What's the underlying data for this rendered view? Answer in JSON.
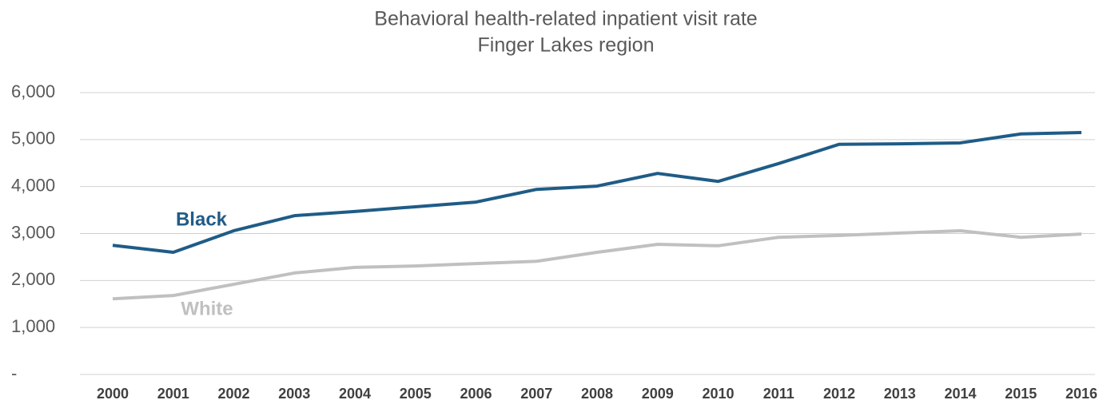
{
  "chart_data": {
    "type": "line",
    "title": "Behavioral health-related inpatient visit rate",
    "subtitle": "Finger Lakes region",
    "categories": [
      "2000",
      "2001",
      "2002",
      "2003",
      "2004",
      "2005",
      "2006",
      "2007",
      "2008",
      "2009",
      "2010",
      "2011",
      "2012",
      "2013",
      "2014",
      "2015",
      "2016"
    ],
    "series": [
      {
        "name": "Black",
        "color": "#1f5c87",
        "values": [
          2750,
          2600,
          3060,
          3380,
          3470,
          3570,
          3670,
          3940,
          4010,
          4280,
          4110,
          4490,
          4900,
          4910,
          4930,
          5120,
          5150
        ]
      },
      {
        "name": "White",
        "color": "#c0c0c0",
        "values": [
          1610,
          1680,
          1920,
          2160,
          2280,
          2310,
          2360,
          2410,
          2600,
          2770,
          2740,
          2920,
          2960,
          3010,
          3060,
          2920,
          2990
        ]
      }
    ],
    "ylim": [
      0,
      6000
    ],
    "yticks": [
      {
        "value": 0,
        "label": "-"
      },
      {
        "value": 1000,
        "label": "1,000"
      },
      {
        "value": 2000,
        "label": "2,000"
      },
      {
        "value": 3000,
        "label": "3,000"
      },
      {
        "value": 4000,
        "label": "4,000"
      },
      {
        "value": 5000,
        "label": "5,000"
      },
      {
        "value": 6000,
        "label": "6,000"
      }
    ],
    "grid": true
  }
}
